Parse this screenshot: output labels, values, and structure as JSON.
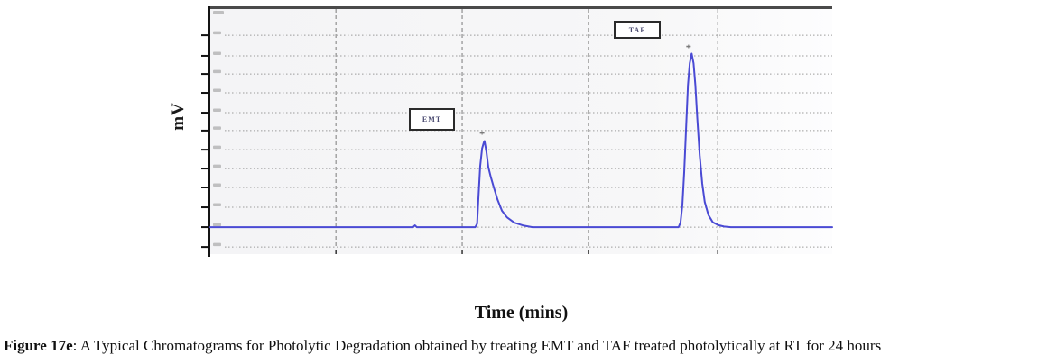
{
  "figure": {
    "y_axis_label": "mV",
    "x_axis_label": "Time (mins)",
    "emt_label": "EMT",
    "taf_label": "TAF",
    "caption_bold": "Figure 17e",
    "caption_rest": ": A Typical Chromatograms for Photolytic Degradation obtained by treating EMT and TAF treated photolytically at RT for 24 hours"
  },
  "colors": {
    "trace": "#4a4ad4",
    "grid_h": "#9b9b9b",
    "grid_v": "#8f8f8f",
    "axis": "#141414",
    "tick": "#111111",
    "smudge": "#8a8a8a",
    "marker": "#7a7a7a",
    "plot_top_border": "#4a4a4a"
  },
  "chart_data": {
    "type": "line",
    "title": "",
    "xlabel": "Time (mins)",
    "ylabel": "mV",
    "tick_labels_legible": false,
    "legend": "none",
    "grid": "on",
    "peaks": [
      {
        "name": "EMT",
        "x_frac": 0.441,
        "height_frac": 0.394
      },
      {
        "name": "TAF",
        "x_frac": 0.774,
        "height_frac": 0.794
      }
    ],
    "layout": {
      "baseline_y_pct": 89.0,
      "full_scale_y_pct": 89.15,
      "h_gridlines_pct": [
        10.7,
        19.1,
        26.5,
        34.2,
        42.3,
        49.6,
        57.4,
        65.1,
        72.8,
        80.9,
        89.0,
        97.1
      ],
      "v_gridlines_pct": [
        20.2,
        40.5,
        60.8,
        81.6
      ]
    },
    "peak_markers_pct": [
      {
        "x": 43.7,
        "y": 43.1
      },
      {
        "x": 76.9,
        "y": 82.7
      }
    ],
    "trace_pct": [
      [
        0,
        0
      ],
      [
        32.6,
        0
      ],
      [
        32.9,
        0.8
      ],
      [
        33.2,
        0
      ],
      [
        42.6,
        0
      ],
      [
        42.9,
        1.5
      ],
      [
        43.1,
        13
      ],
      [
        43.4,
        28
      ],
      [
        43.7,
        36
      ],
      [
        44.0,
        39
      ],
      [
        44.1,
        39.4
      ],
      [
        44.4,
        34.5
      ],
      [
        44.7,
        27.5
      ],
      [
        45.1,
        23
      ],
      [
        45.6,
        18
      ],
      [
        46.2,
        12.5
      ],
      [
        46.9,
        7.5
      ],
      [
        47.7,
        4.5
      ],
      [
        48.9,
        2
      ],
      [
        50.4,
        0.7
      ],
      [
        51.8,
        0
      ],
      [
        75.3,
        0
      ],
      [
        75.6,
        2
      ],
      [
        75.9,
        10
      ],
      [
        76.2,
        25
      ],
      [
        76.5,
        45
      ],
      [
        76.8,
        65
      ],
      [
        77.1,
        75
      ],
      [
        77.4,
        79.4
      ],
      [
        77.7,
        75
      ],
      [
        78.0,
        65
      ],
      [
        78.3,
        50
      ],
      [
        78.7,
        33
      ],
      [
        79.1,
        20
      ],
      [
        79.5,
        11.5
      ],
      [
        80.1,
        5.5
      ],
      [
        80.8,
        2.2
      ],
      [
        81.7,
        0.9
      ],
      [
        82.6,
        0.3
      ],
      [
        83.7,
        0
      ],
      [
        100,
        0
      ]
    ]
  }
}
